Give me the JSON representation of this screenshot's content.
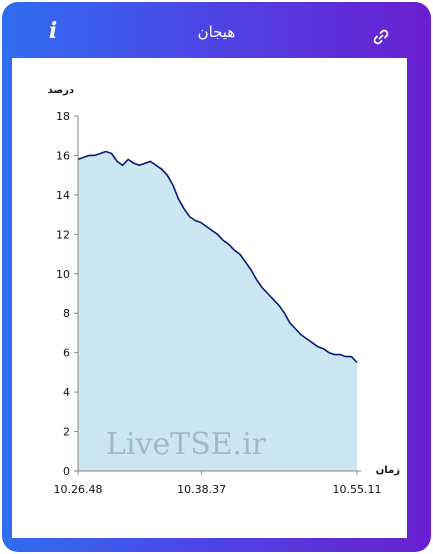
{
  "header": {
    "title": "هیجان",
    "info_icon": "info-icon",
    "link_icon": "link-icon"
  },
  "colors": {
    "gradient_start": "#2f6df0",
    "gradient_end": "#6a1fd0",
    "line": "#0b1a7a",
    "fill": "#cbe7f2"
  },
  "watermark": "LiveTSE.ir",
  "chart_data": {
    "type": "area",
    "ylabel": "درصد",
    "xlabel": "زمان",
    "ylim": [
      0,
      18
    ],
    "yticks": [
      0,
      2,
      4,
      6,
      8,
      10,
      12,
      14,
      16,
      18
    ],
    "xtick_labels": [
      "10.26.48",
      "10.38.37",
      "10.55.11"
    ],
    "xtick_positions": [
      0,
      0.443,
      1
    ],
    "grid": false,
    "series": [
      {
        "x": [
          0,
          0.02,
          0.04,
          0.06,
          0.08,
          0.1,
          0.12,
          0.14,
          0.16,
          0.18,
          0.2,
          0.22,
          0.24,
          0.26,
          0.28,
          0.3,
          0.32,
          0.34,
          0.36,
          0.38,
          0.4,
          0.42,
          0.44,
          0.46,
          0.48,
          0.5,
          0.52,
          0.54,
          0.56,
          0.58,
          0.6,
          0.62,
          0.64,
          0.66,
          0.68,
          0.7,
          0.72,
          0.74,
          0.76,
          0.78,
          0.8,
          0.82,
          0.84,
          0.86,
          0.88,
          0.9,
          0.92,
          0.94,
          0.96,
          0.98,
          1.0
        ],
        "values": [
          15.8,
          15.9,
          16.0,
          16.0,
          16.1,
          16.2,
          16.1,
          15.7,
          15.5,
          15.8,
          15.6,
          15.5,
          15.6,
          15.7,
          15.5,
          15.3,
          15.0,
          14.5,
          13.8,
          13.3,
          12.9,
          12.7,
          12.6,
          12.4,
          12.2,
          12.0,
          11.7,
          11.5,
          11.2,
          11.0,
          10.6,
          10.2,
          9.7,
          9.3,
          9.0,
          8.7,
          8.4,
          8.0,
          7.5,
          7.2,
          6.9,
          6.7,
          6.5,
          6.3,
          6.2,
          6.0,
          5.9,
          5.9,
          5.8,
          5.8,
          5.5
        ]
      }
    ]
  }
}
